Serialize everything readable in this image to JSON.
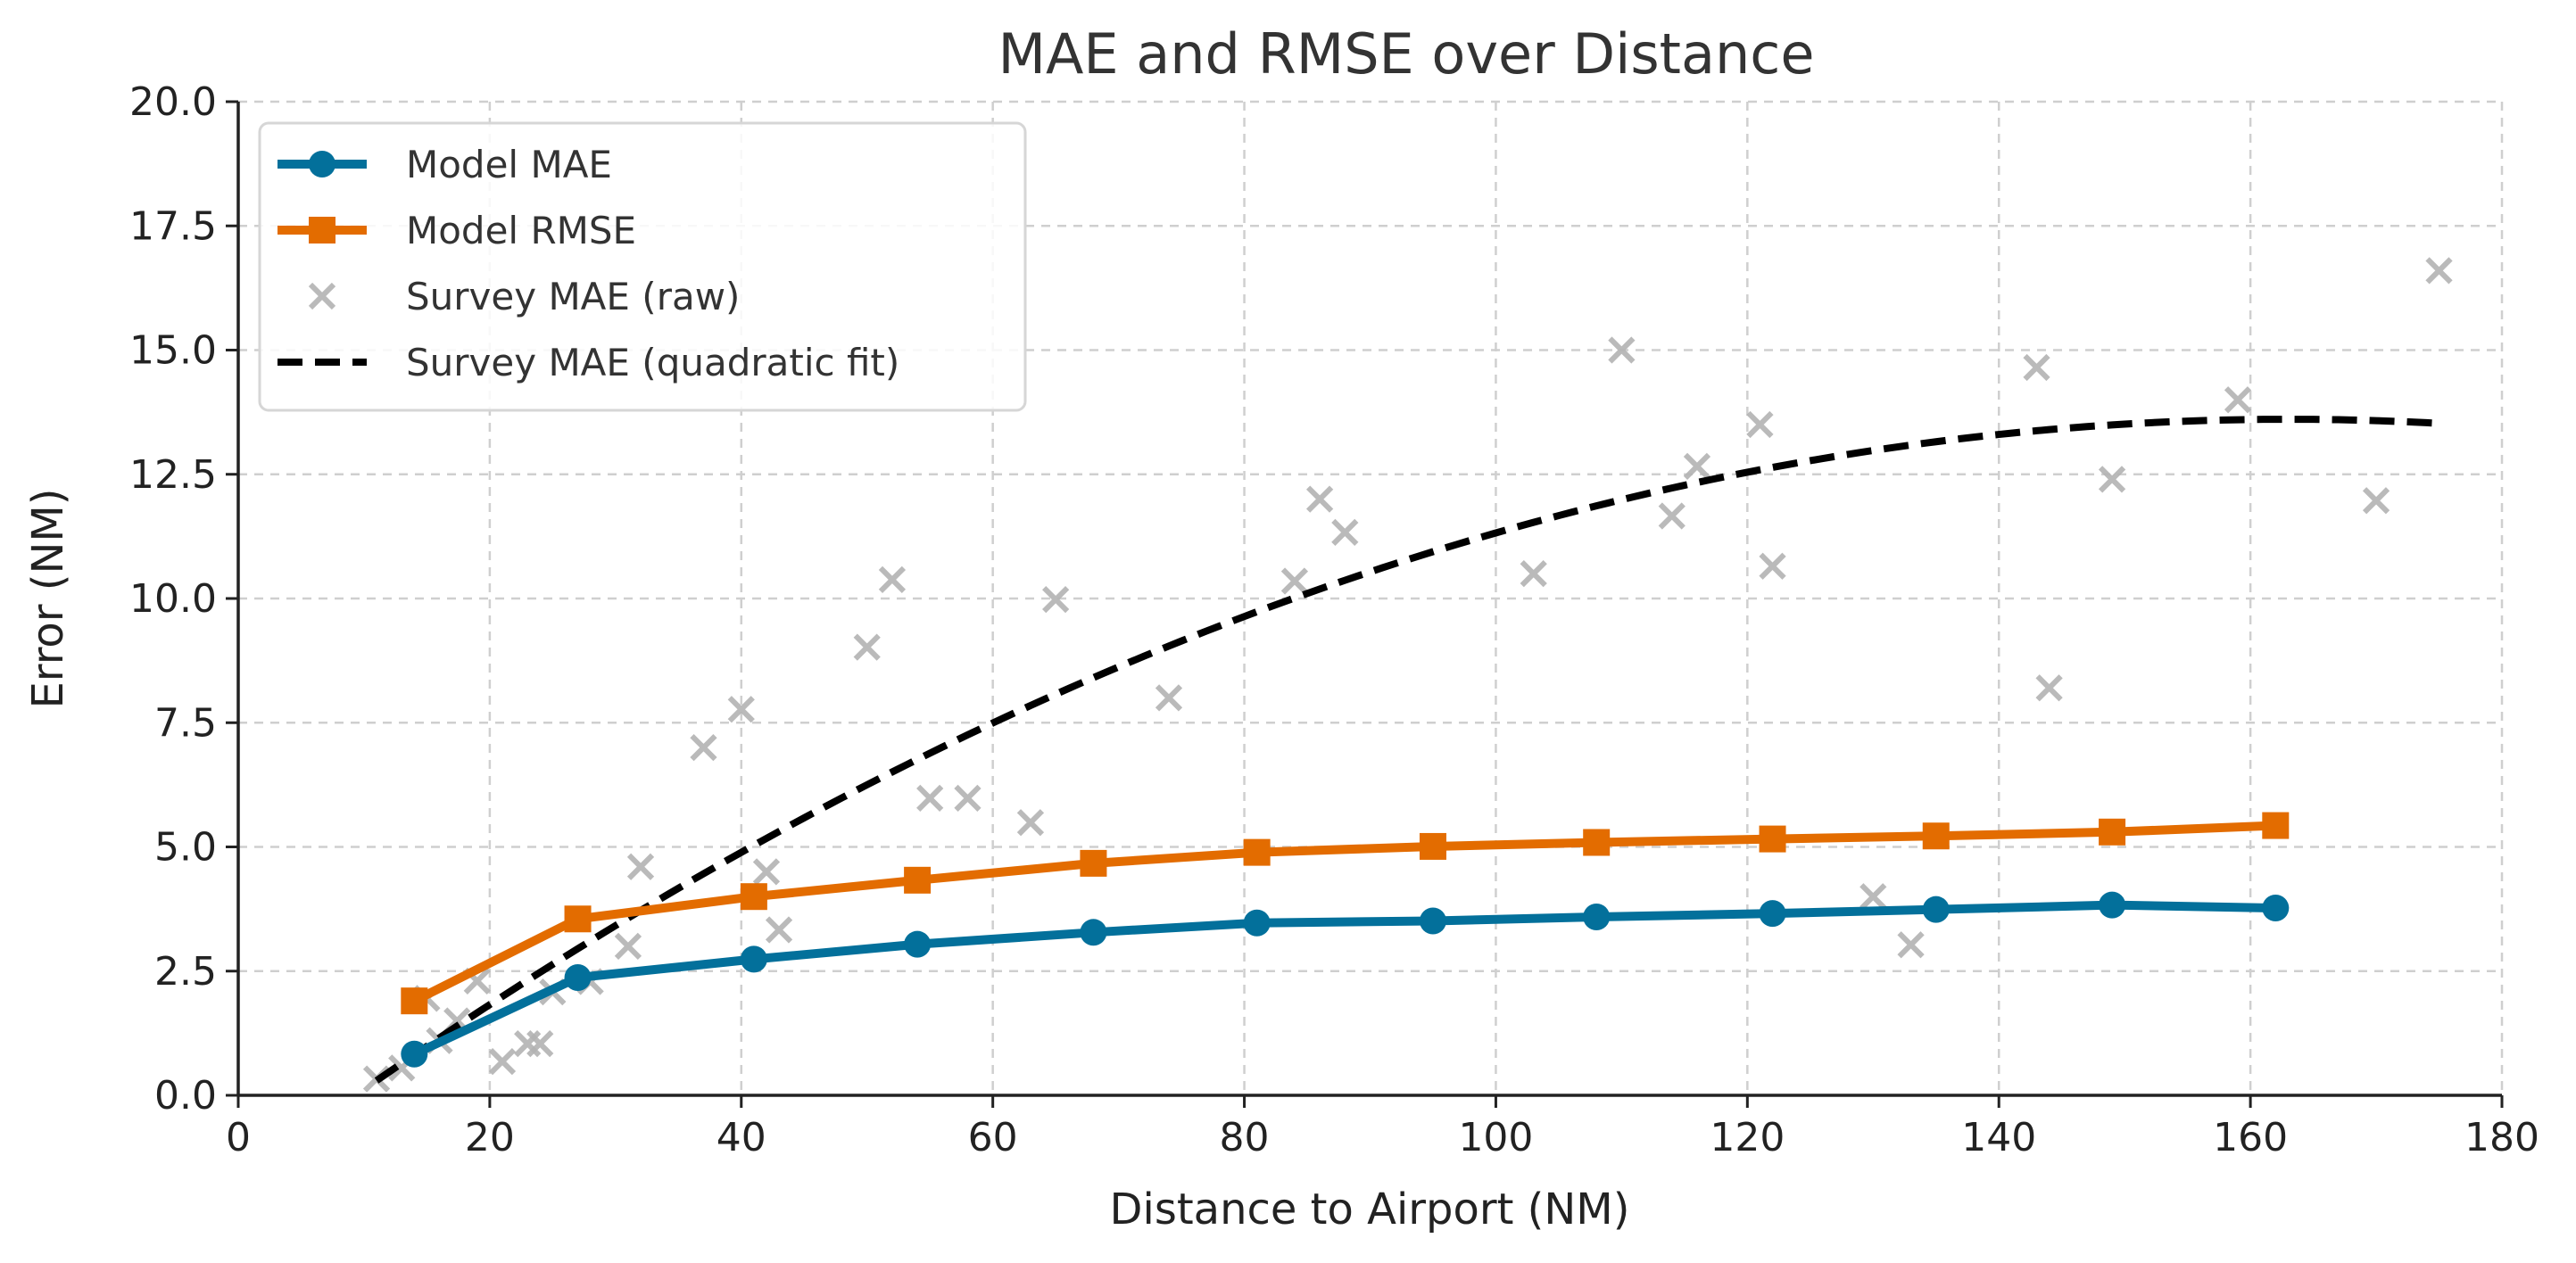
{
  "chart_data": {
    "type": "line",
    "title": "MAE and RMSE over Distance",
    "xlabel": "Distance to Airport (NM)",
    "ylabel": "Error (NM)",
    "xlim": [
      0,
      180
    ],
    "ylim": [
      0,
      20
    ],
    "xticks": [
      0,
      20,
      40,
      60,
      80,
      100,
      120,
      140,
      160,
      180
    ],
    "yticks": [
      "0.0",
      "2.5",
      "5.0",
      "7.5",
      "10.0",
      "12.5",
      "15.0",
      "17.5",
      "20.0"
    ],
    "grid": true,
    "legend_position": "top-left",
    "colors": {
      "mae": "#03709b",
      "rmse": "#e36c00",
      "survey": "#b3b3b3",
      "fit": "#000000"
    },
    "series": [
      {
        "name": "Model MAE",
        "kind": "line-circle",
        "x": [
          14,
          27,
          41,
          54,
          68,
          81,
          95,
          108,
          122,
          135,
          149,
          162
        ],
        "y": [
          0.83,
          2.37,
          2.74,
          3.04,
          3.28,
          3.47,
          3.51,
          3.59,
          3.66,
          3.74,
          3.83,
          3.77
        ]
      },
      {
        "name": "Model RMSE",
        "kind": "line-square",
        "x": [
          14,
          27,
          41,
          54,
          68,
          81,
          95,
          108,
          122,
          135,
          149,
          162
        ],
        "y": [
          1.9,
          3.55,
          4.0,
          4.33,
          4.67,
          4.89,
          5.01,
          5.09,
          5.16,
          5.22,
          5.3,
          5.43
        ]
      },
      {
        "name": "Survey MAE (raw)",
        "kind": "scatter-x",
        "x": [
          11,
          13,
          15,
          16,
          17.4,
          19,
          21,
          23,
          24,
          25,
          28,
          31,
          32,
          37,
          40,
          42,
          43,
          50,
          52,
          55,
          58,
          63,
          65,
          74,
          84,
          86,
          88,
          103,
          110,
          114,
          116,
          121,
          122,
          130,
          133,
          143,
          144,
          149,
          159,
          170,
          175
        ],
        "y": [
          0.33,
          0.55,
          1.95,
          1.1,
          1.5,
          2.3,
          0.68,
          1.04,
          1.04,
          2.08,
          2.29,
          3.0,
          4.6,
          7.0,
          7.77,
          4.5,
          3.33,
          9.02,
          10.38,
          5.98,
          5.98,
          5.49,
          9.98,
          8.0,
          10.35,
          12.0,
          11.33,
          10.5,
          15.0,
          11.66,
          12.66,
          13.5,
          10.65,
          4.0,
          3.03,
          14.65,
          8.2,
          12.4,
          14.0,
          11.97,
          16.6
        ]
      },
      {
        "name": "Survey MAE (quadratic fit)",
        "kind": "dashed-line",
        "coefficients": {
          "a": -1.7,
          "b": 0.1878,
          "c": -0.000576
        },
        "x_range": [
          11,
          175
        ]
      }
    ]
  }
}
